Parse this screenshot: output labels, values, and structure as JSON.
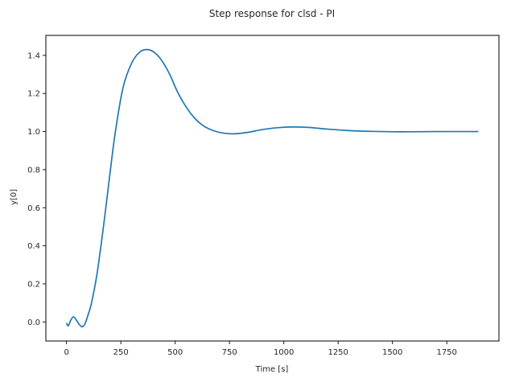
{
  "chart_data": {
    "type": "line",
    "title": "Step response for clsd - PI",
    "xlabel": "Time [s]",
    "ylabel": "y[0]",
    "xlim": [
      -95,
      1990
    ],
    "ylim": [
      -0.1,
      1.505
    ],
    "xticks": [
      0,
      250,
      500,
      750,
      1000,
      1250,
      1500,
      1750
    ],
    "xtick_labels": [
      "0",
      "250",
      "500",
      "750",
      "1000",
      "1250",
      "1500",
      "1750"
    ],
    "yticks": [
      0.0,
      0.2,
      0.4,
      0.6,
      0.8,
      1.0,
      1.2,
      1.4
    ],
    "ytick_labels": [
      "0.0",
      "0.2",
      "0.4",
      "0.6",
      "0.8",
      "1.0",
      "1.2",
      "1.4"
    ],
    "grid": false,
    "legend": null,
    "series": [
      {
        "name": "y[0]",
        "color": "#1f77b4",
        "x": [
          0,
          8,
          20,
          32,
          45,
          60,
          72,
          85,
          100,
          115,
          140,
          170,
          200,
          225,
          260,
          300,
          340,
          378,
          410,
          440,
          475,
          510,
          550,
          590,
          630,
          675,
          720,
          770,
          830,
          900,
          970,
          1040,
          1110,
          1200,
          1300,
          1400,
          1500,
          1600,
          1700,
          1800,
          1895
        ],
        "y": [
          -0.005,
          -0.02,
          0.01,
          0.027,
          0.01,
          -0.015,
          -0.025,
          -0.01,
          0.04,
          0.1,
          0.25,
          0.5,
          0.78,
          1.0,
          1.23,
          1.36,
          1.42,
          1.43,
          1.41,
          1.37,
          1.3,
          1.21,
          1.13,
          1.07,
          1.03,
          1.005,
          0.992,
          0.988,
          0.995,
          1.01,
          1.02,
          1.024,
          1.022,
          1.013,
          1.005,
          1.001,
          0.999,
          0.999,
          1.0,
          1.0,
          1.0
        ]
      }
    ]
  }
}
